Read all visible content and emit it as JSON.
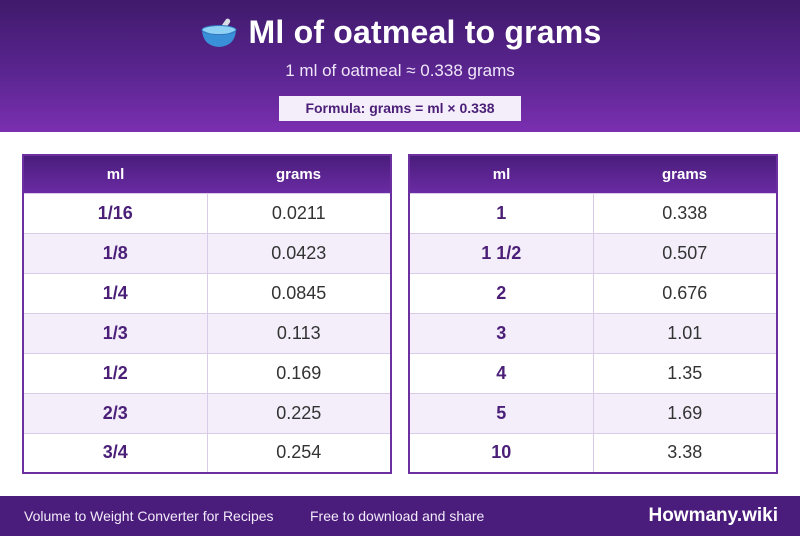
{
  "header": {
    "icon": "bowl-with-spoon-icon",
    "title": "Ml of oatmeal to grams",
    "subtitle": "1 ml of oatmeal ≈ 0.338 grams",
    "formula": "Formula: grams = ml × 0.338"
  },
  "tables": {
    "left": {
      "headers": [
        "ml",
        "grams"
      ],
      "rows": [
        [
          "1/16",
          "0.0211"
        ],
        [
          "1/8",
          "0.0423"
        ],
        [
          "1/4",
          "0.0845"
        ],
        [
          "1/3",
          "0.113"
        ],
        [
          "1/2",
          "0.169"
        ],
        [
          "2/3",
          "0.225"
        ],
        [
          "3/4",
          "0.254"
        ]
      ]
    },
    "right": {
      "headers": [
        "ml",
        "grams"
      ],
      "rows": [
        [
          "1",
          "0.338"
        ],
        [
          "1 1/2",
          "0.507"
        ],
        [
          "2",
          "0.676"
        ],
        [
          "3",
          "1.01"
        ],
        [
          "4",
          "1.35"
        ],
        [
          "5",
          "1.69"
        ],
        [
          "10",
          "3.38"
        ]
      ]
    }
  },
  "footer": {
    "left_text": "Volume to Weight Converter for Recipes",
    "mid_text": "Free to download and share",
    "brand": "Howmany.wiki"
  },
  "colors": {
    "header_dark": "#3f1a6b",
    "header_light": "#7a2fb0",
    "accent_text": "#4b1f78",
    "row_alt": "#f3eefa"
  }
}
